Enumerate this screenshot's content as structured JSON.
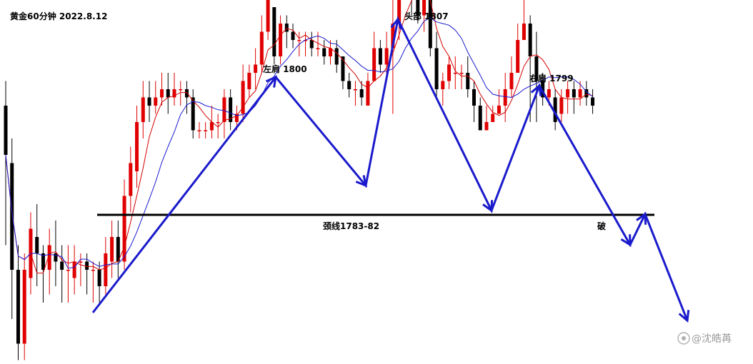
{
  "chart_data": {
    "type": "candlestick",
    "title": "黄金60分钟 2022.8.12",
    "ylim": [
      1754,
      1812
    ],
    "bull_color": "#e00000",
    "bear_color": "#000000",
    "ma_short_color": "#d40000",
    "ma_long_color": "#1a1ad0",
    "pattern_color": "#1a1acc",
    "candles": [
      [
        1786,
        1780,
        1789,
        1769
      ],
      [
        1779,
        1766,
        1782,
        1760
      ],
      [
        1766,
        1757,
        1769,
        1755
      ],
      [
        1757,
        1766,
        1768,
        1755
      ],
      [
        1765,
        1771,
        1773,
        1763
      ],
      [
        1770,
        1768,
        1774,
        1764
      ],
      [
        1768,
        1766,
        1769,
        1762
      ],
      [
        1766,
        1769,
        1771,
        1763
      ],
      [
        1768,
        1767,
        1772,
        1764
      ],
      [
        1767,
        1766,
        1769,
        1762
      ],
      [
        1766,
        1766,
        1769,
        1762
      ],
      [
        1765,
        1767,
        1769,
        1763
      ],
      [
        1767,
        1767,
        1768,
        1764
      ],
      [
        1767,
        1766,
        1768,
        1763
      ],
      [
        1766,
        1766,
        1767,
        1762
      ],
      [
        1766,
        1764,
        1767,
        1762
      ],
      [
        1764,
        1768,
        1770,
        1763
      ],
      [
        1767,
        1770,
        1772,
        1765
      ],
      [
        1770,
        1767,
        1772,
        1765
      ],
      [
        1767,
        1775,
        1777,
        1766
      ],
      [
        1775,
        1779,
        1781,
        1773
      ],
      [
        1778,
        1784,
        1786,
        1776
      ],
      [
        1784,
        1787,
        1789,
        1782
      ],
      [
        1787,
        1786,
        1789,
        1784
      ],
      [
        1786,
        1787,
        1789,
        1785
      ],
      [
        1787,
        1788,
        1790,
        1786
      ],
      [
        1788,
        1787,
        1790,
        1785
      ],
      [
        1787,
        1788,
        1790,
        1786
      ],
      [
        1788,
        1788,
        1789,
        1786
      ],
      [
        1788,
        1787,
        1789,
        1785
      ],
      [
        1787,
        1783,
        1788,
        1782
      ],
      [
        1783,
        1783,
        1784,
        1782
      ],
      [
        1783,
        1783,
        1784,
        1782
      ],
      [
        1783,
        1784,
        1786,
        1782
      ],
      [
        1784,
        1784,
        1785,
        1782
      ],
      [
        1784,
        1787,
        1788,
        1782
      ],
      [
        1787,
        1784,
        1788,
        1783
      ],
      [
        1784,
        1785,
        1786,
        1783
      ],
      [
        1785,
        1789,
        1791,
        1784
      ],
      [
        1788,
        1790,
        1791,
        1787
      ],
      [
        1790,
        1791,
        1793,
        1788
      ],
      [
        1791,
        1795,
        1797,
        1790
      ],
      [
        1795,
        1799,
        1800,
        1794
      ],
      [
        1798,
        1792,
        1797,
        1791
      ],
      [
        1792,
        1796,
        1797,
        1791
      ],
      [
        1796,
        1795,
        1797,
        1793
      ],
      [
        1795,
        1794,
        1796,
        1793
      ],
      [
        1794,
        1794,
        1795,
        1792
      ],
      [
        1794,
        1794,
        1795,
        1792
      ],
      [
        1794,
        1793,
        1795,
        1792
      ],
      [
        1793,
        1793,
        1795,
        1792
      ],
      [
        1793,
        1792,
        1794,
        1791
      ],
      [
        1792,
        1793,
        1794,
        1791
      ],
      [
        1793,
        1791,
        1794,
        1790
      ],
      [
        1792,
        1789,
        1792,
        1788
      ],
      [
        1789,
        1788,
        1790,
        1787
      ],
      [
        1788,
        1788,
        1789,
        1786
      ],
      [
        1788,
        1787,
        1789,
        1786
      ],
      [
        1786,
        1789,
        1790,
        1786
      ],
      [
        1789,
        1793,
        1795,
        1789
      ],
      [
        1793,
        1791,
        1794,
        1790
      ],
      [
        1791,
        1793,
        1795,
        1789
      ],
      [
        1793,
        1796,
        1800,
        1785
      ],
      [
        1796,
        1800,
        1807,
        1794
      ],
      [
        1800,
        1805,
        1806,
        1799
      ],
      [
        1805,
        1800,
        1804,
        1797
      ],
      [
        1800,
        1797,
        1801,
        1796
      ],
      [
        1797,
        1799,
        1801,
        1795
      ],
      [
        1799,
        1793,
        1801,
        1792
      ],
      [
        1793,
        1788,
        1795,
        1787
      ],
      [
        1788,
        1789,
        1790,
        1786
      ],
      [
        1789,
        1791,
        1792,
        1788
      ],
      [
        1790,
        1790,
        1792,
        1788
      ],
      [
        1790,
        1790,
        1791,
        1788
      ],
      [
        1790,
        1788,
        1792,
        1787
      ],
      [
        1788,
        1786,
        1789,
        1784
      ],
      [
        1786,
        1783,
        1787,
        1783
      ],
      [
        1783,
        1784,
        1786,
        1783
      ],
      [
        1784,
        1785,
        1786,
        1784
      ],
      [
        1785,
        1786,
        1788,
        1785
      ],
      [
        1786,
        1788,
        1790,
        1784
      ],
      [
        1788,
        1790,
        1792,
        1787
      ],
      [
        1790,
        1794,
        1796,
        1790
      ],
      [
        1794,
        1796,
        1799,
        1794
      ],
      [
        1796,
        1792,
        1797,
        1784
      ],
      [
        1792,
        1789,
        1795,
        1784
      ],
      [
        1789,
        1787,
        1790,
        1786
      ],
      [
        1787,
        1788,
        1789,
        1786
      ],
      [
        1787,
        1784,
        1788,
        1783
      ],
      [
        1785,
        1787,
        1788,
        1784
      ],
      [
        1787,
        1788,
        1789,
        1785
      ],
      [
        1788,
        1787,
        1789,
        1785
      ],
      [
        1787,
        1788,
        1789,
        1786
      ],
      [
        1788,
        1787,
        1789,
        1786
      ],
      [
        1787,
        1786,
        1788,
        1785
      ]
    ]
  },
  "labels": {
    "left_shoulder": "左肩 1800",
    "head": "头部 1807",
    "right_shoulder": "右肩 1799",
    "neckline": "颈线1783-82",
    "break": "破"
  },
  "watermark": "@沈皓苒"
}
